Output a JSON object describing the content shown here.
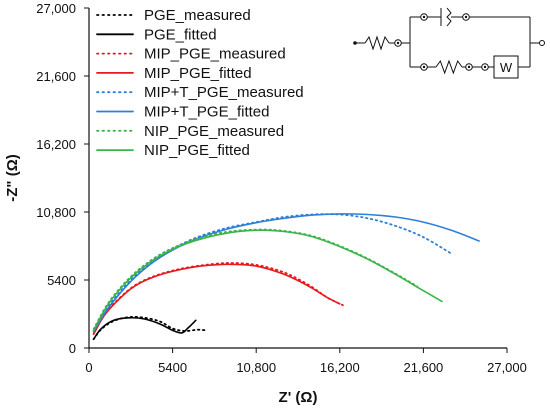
{
  "chart_data": {
    "type": "line",
    "title": "",
    "xlabel": "Z' (Ω)",
    "ylabel": "-Z\" (Ω)",
    "xlim": [
      0,
      27000
    ],
    "ylim": [
      0,
      27000
    ],
    "x_ticks": [
      "0",
      "5400",
      "10,800",
      "16,200",
      "21,600",
      "27,000"
    ],
    "y_ticks": [
      "0",
      "5400",
      "10,800",
      "16,200",
      "21,600",
      "27,000"
    ],
    "x_tick_values": [
      0,
      5400,
      10800,
      16200,
      21600,
      27000
    ],
    "y_tick_values": [
      0,
      5400,
      10800,
      16200,
      21600,
      27000
    ],
    "grid": false,
    "legend_position": "top-left",
    "series": [
      {
        "name": "PGE_measured",
        "color": "#000000",
        "style": "dotted",
        "x": [
          300,
          800,
          1600,
          2600,
          3600,
          4600,
          5400,
          6200,
          7000,
          7600
        ],
        "y": [
          700,
          1500,
          2150,
          2450,
          2400,
          2100,
          1550,
          1350,
          1450,
          1400
        ]
      },
      {
        "name": "PGE_fitted",
        "color": "#000000",
        "style": "solid",
        "x": [
          300,
          800,
          1600,
          2600,
          3600,
          4600,
          5400,
          6000,
          6400,
          6900
        ],
        "y": [
          700,
          1550,
          2200,
          2400,
          2300,
          1900,
          1400,
          1200,
          1600,
          2200
        ]
      },
      {
        "name": "MIP_PGE_measured",
        "color": "#e8191e",
        "style": "dotted",
        "x": [
          300,
          1000,
          2000,
          3000,
          4200,
          5600,
          7200,
          9000,
          10800,
          12600,
          14200,
          15400,
          16400
        ],
        "y": [
          1100,
          2700,
          4000,
          5000,
          5700,
          6200,
          6550,
          6750,
          6600,
          6000,
          5000,
          4000,
          3400
        ]
      },
      {
        "name": "MIP_PGE_fitted",
        "color": "#e8191e",
        "style": "solid",
        "x": [
          300,
          1000,
          2000,
          3000,
          4200,
          5600,
          7200,
          9000,
          10800,
          12600,
          14200,
          15400,
          16200
        ],
        "y": [
          1100,
          2600,
          3950,
          4950,
          5650,
          6150,
          6500,
          6650,
          6500,
          5850,
          4900,
          4000,
          3500
        ]
      },
      {
        "name": "MIP+T_PGE_measured",
        "color": "#2e7fd9",
        "style": "dotted",
        "x": [
          300,
          1200,
          2400,
          3600,
          5000,
          6800,
          8800,
          10800,
          12600,
          14400,
          16200,
          18000,
          19800,
          21600,
          23400
        ],
        "y": [
          1300,
          3200,
          5000,
          6400,
          7600,
          8700,
          9500,
          10000,
          10400,
          10600,
          10600,
          10300,
          9700,
          8800,
          7500
        ]
      },
      {
        "name": "MIP+T_PGE_fitted",
        "color": "#2e7fd9",
        "style": "solid",
        "x": [
          300,
          1200,
          2400,
          3600,
          5000,
          6800,
          8800,
          10800,
          12600,
          14400,
          16200,
          18000,
          19800,
          21600,
          23400,
          25200
        ],
        "y": [
          1300,
          3100,
          4900,
          6300,
          7500,
          8600,
          9400,
          9950,
          10300,
          10550,
          10650,
          10600,
          10400,
          10000,
          9350,
          8500
        ]
      },
      {
        "name": "NIP_PGE_measured",
        "color": "#3cb44b",
        "style": "dotted",
        "x": [
          300,
          1200,
          2400,
          3600,
          5000,
          6800,
          8800,
          10800,
          12600,
          14400,
          16200,
          18000,
          19800,
          21200
        ],
        "y": [
          1500,
          3500,
          5300,
          6600,
          7700,
          8600,
          9200,
          9400,
          9300,
          8900,
          8100,
          7100,
          5900,
          4900
        ]
      },
      {
        "name": "NIP_PGE_fitted",
        "color": "#3cb44b",
        "style": "solid",
        "x": [
          300,
          1200,
          2400,
          3600,
          5000,
          6800,
          8800,
          10800,
          12600,
          14400,
          16200,
          18000,
          19800,
          21600,
          22800
        ],
        "y": [
          1400,
          3400,
          5200,
          6500,
          7600,
          8500,
          9100,
          9350,
          9250,
          8850,
          8050,
          7050,
          5850,
          4550,
          3700
        ]
      }
    ],
    "inset": {
      "type": "equivalent-circuit-icon",
      "labels": [
        "W"
      ]
    }
  }
}
